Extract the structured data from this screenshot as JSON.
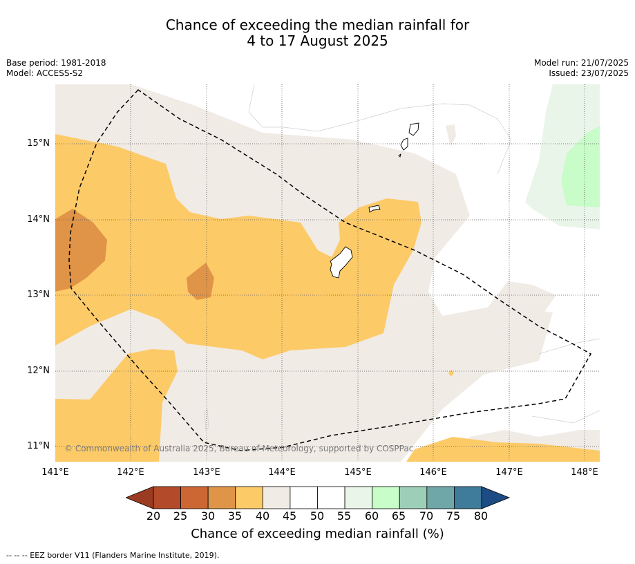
{
  "title_line1": "Chance of exceeding the median rainfall for",
  "title_line2": "4 to 17 August 2025",
  "meta_left": {
    "base_period": "Base period: 1981-2018",
    "model": "Model: ACCESS-S2"
  },
  "meta_right": {
    "model_run": "Model run: 21/07/2025",
    "issued": "Issued: 23/07/2025"
  },
  "lat_labels": [
    "15°N",
    "14°N",
    "13°N",
    "12°N",
    "11°N"
  ],
  "lon_labels": [
    "141°E",
    "142°E",
    "143°E",
    "144°E",
    "145°E",
    "146°E",
    "147°E",
    "148°E"
  ],
  "copyright": "© Commonwealth of Australia 2025, Bureau of Meteorology, supported by COSPPac",
  "colorbar": {
    "ticks": [
      "20",
      "25",
      "30",
      "35",
      "40",
      "45",
      "50",
      "55",
      "60",
      "65",
      "70",
      "75",
      "80"
    ],
    "colors": [
      "#b34a29",
      "#cc6633",
      "#e09448",
      "#fdca68",
      "#f0ebe5",
      "#ffffff",
      "#ffffff",
      "#eaf5ea",
      "#c8fcc8",
      "#9dcfb8",
      "#6fa6a8",
      "#3f7b9a"
    ],
    "under_color": "#9b3b22",
    "over_color": "#1d4c84",
    "label": "Chance of exceeding median rainfall (%)"
  },
  "footer": "--  --  -- EEZ border V11 (Flanders Marine Institute, 2019)."
}
